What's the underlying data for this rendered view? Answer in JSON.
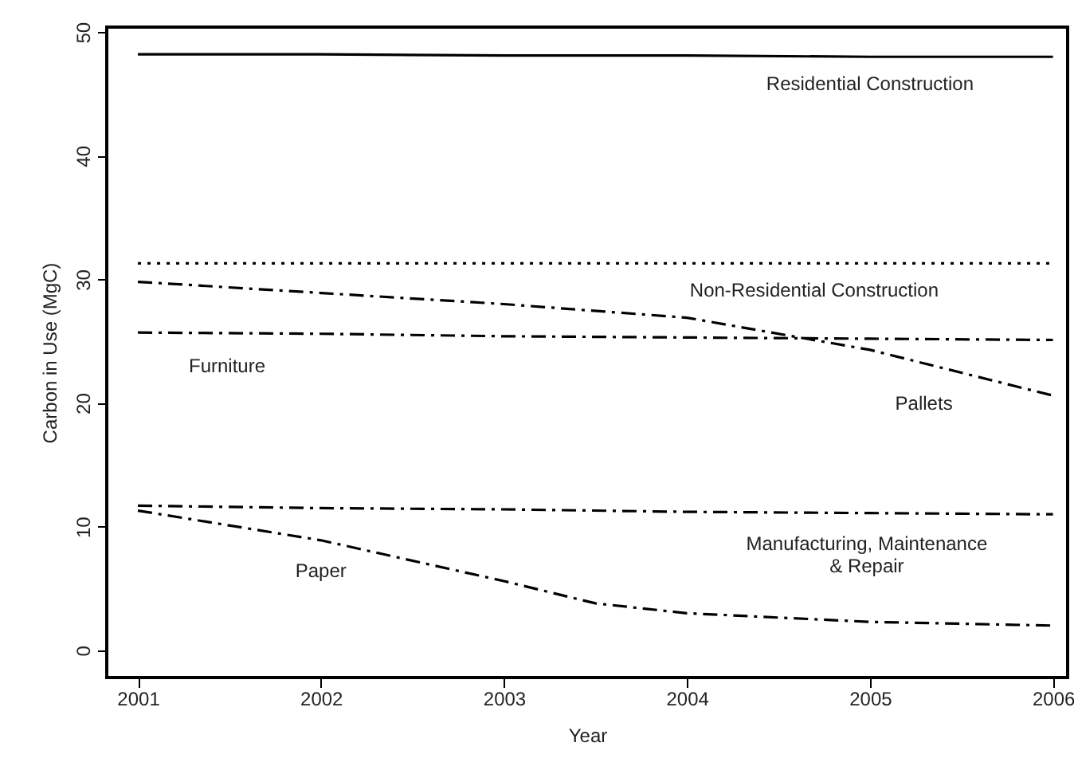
{
  "chart_data": {
    "type": "line",
    "xlabel": "Year",
    "ylabel": "Carbon in Use (MgC)",
    "x": [
      2001,
      2002,
      2003,
      2004,
      2005,
      2006
    ],
    "xlim": [
      2000.83,
      2006.08
    ],
    "ylim": [
      -2.2,
      50.4
    ],
    "xticks": [
      2001,
      2002,
      2003,
      2004,
      2005,
      2006
    ],
    "yticks": [
      0,
      10,
      20,
      30,
      40,
      50
    ],
    "series": [
      {
        "name": "Residential Construction",
        "color": "#000000",
        "line_style": "solid",
        "values": [
          48.2,
          48.2,
          48.1,
          48.1,
          48.0,
          48.0
        ]
      },
      {
        "name": "Non-Residential Construction",
        "color": "#000000",
        "line_style": "dotted",
        "values": [
          31.3,
          31.3,
          31.3,
          31.3,
          31.3,
          31.3
        ]
      },
      {
        "name": "Pallets",
        "color": "#000000",
        "line_style": "dashed",
        "values": [
          29.8,
          28.9,
          28.0,
          26.9,
          24.3,
          20.6
        ]
      },
      {
        "name": "Furniture",
        "color": "#000000",
        "line_style": "dashed",
        "values": [
          25.7,
          25.6,
          25.4,
          25.3,
          25.2,
          25.1
        ]
      },
      {
        "name": "Manufacturing, Maintenance\n& Repair",
        "color": "#000000",
        "line_style": "dashed",
        "values": [
          11.7,
          11.5,
          11.4,
          11.2,
          11.1,
          11.0
        ]
      },
      {
        "name": "Paper",
        "color": "#000000",
        "line_style": "dashed",
        "x": [
          2001,
          2002,
          2003,
          2003.5,
          2004,
          2005,
          2006
        ],
        "values": [
          11.3,
          8.9,
          5.6,
          3.8,
          3.0,
          2.3,
          2.0
        ]
      }
    ]
  }
}
